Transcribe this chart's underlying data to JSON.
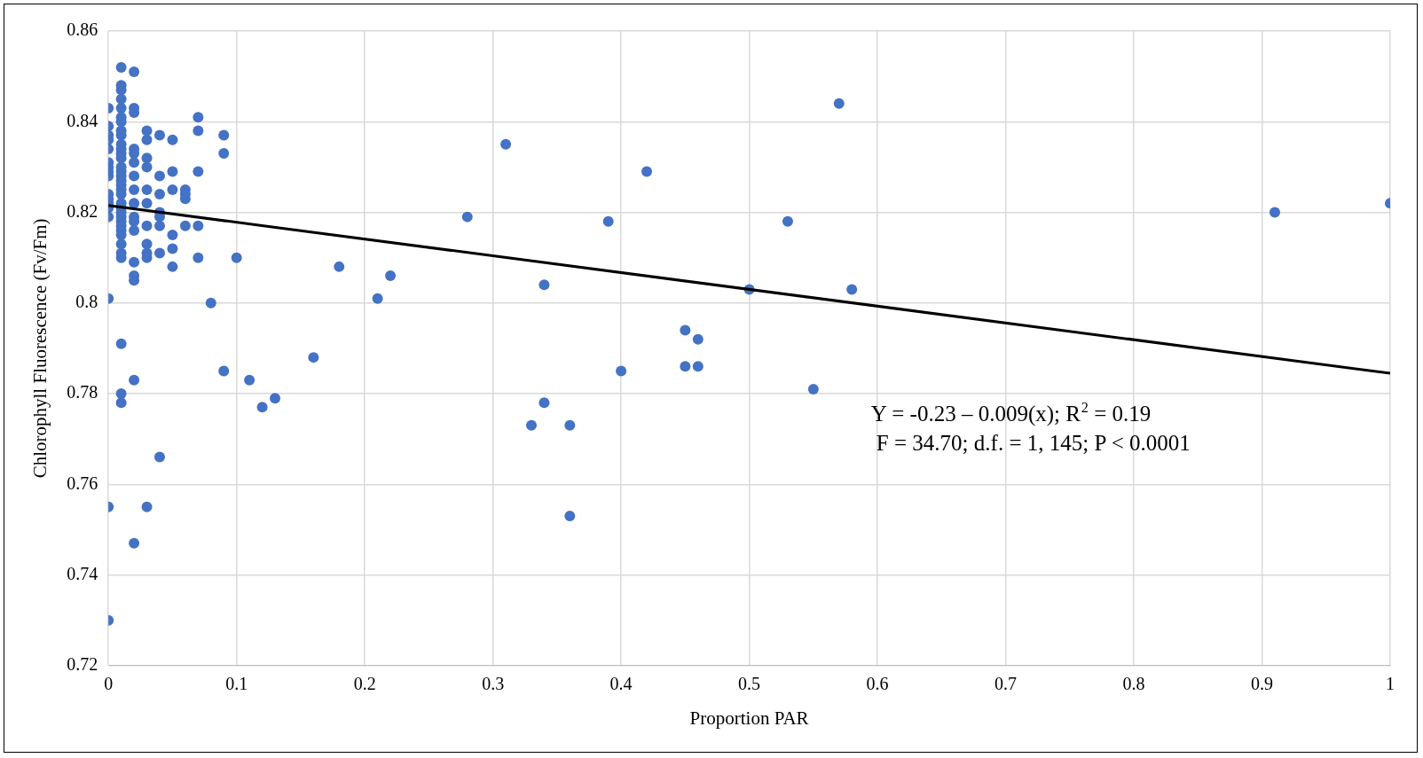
{
  "chart_data": {
    "type": "scatter",
    "xlabel": "Proportion PAR",
    "ylabel": "Chlorophyll Fluorescence (Fv/Fm)",
    "xlim": [
      0,
      1
    ],
    "xticks": [
      0,
      0.1,
      0.2,
      0.3,
      0.4,
      0.5,
      0.6,
      0.7,
      0.8,
      0.9,
      1
    ],
    "ylim": [
      0.72,
      0.86
    ],
    "yticks": [
      0.72,
      0.74,
      0.76,
      0.78,
      0.8,
      0.82,
      0.84,
      0.86
    ],
    "grid": true,
    "legend": false,
    "marker": "circle",
    "annotations": [
      "Y = -0.23 – 0.009(x); R$^{2}$ = 0.19",
      "F = 34.70; d.f. = 1, 145; P < 0.0001"
    ],
    "series": [
      {
        "color": "#4472c4",
        "x": [
          0,
          0,
          0,
          0,
          0,
          0,
          0,
          0,
          0,
          0,
          0,
          0,
          0,
          0,
          0,
          0,
          0,
          0.01,
          0.01,
          0.01,
          0.01,
          0.01,
          0.01,
          0.01,
          0.01,
          0.01,
          0.01,
          0.01,
          0.01,
          0.01,
          0.01,
          0.01,
          0.01,
          0.01,
          0.01,
          0.01,
          0.01,
          0.01,
          0.01,
          0.01,
          0.01,
          0.01,
          0.01,
          0.01,
          0.01,
          0.01,
          0.01,
          0.01,
          0.01,
          0.01,
          0.01,
          0.02,
          0.02,
          0.02,
          0.02,
          0.02,
          0.02,
          0.02,
          0.02,
          0.02,
          0.02,
          0.02,
          0.02,
          0.02,
          0.02,
          0.02,
          0.02,
          0.02,
          0.03,
          0.03,
          0.03,
          0.03,
          0.03,
          0.03,
          0.03,
          0.03,
          0.03,
          0.03,
          0.03,
          0.04,
          0.04,
          0.04,
          0.04,
          0.04,
          0.04,
          0.04,
          0.04,
          0.05,
          0.05,
          0.05,
          0.05,
          0.05,
          0.05,
          0.06,
          0.06,
          0.06,
          0.06,
          0.07,
          0.07,
          0.07,
          0.07,
          0.07,
          0.08,
          0.09,
          0.09,
          0.09,
          0.1,
          0.11,
          0.12,
          0.13,
          0.16,
          0.18,
          0.21,
          0.22,
          0.28,
          0.31,
          0.33,
          0.34,
          0.34,
          0.36,
          0.36,
          0.39,
          0.4,
          0.42,
          0.45,
          0.45,
          0.46,
          0.46,
          0.5,
          0.53,
          0.55,
          0.57,
          0.58,
          0.91,
          1
        ],
        "values": [
          0.843,
          0.839,
          0.837,
          0.836,
          0.834,
          0.831,
          0.83,
          0.829,
          0.828,
          0.824,
          0.823,
          0.822,
          0.821,
          0.819,
          0.801,
          0.755,
          0.73,
          0.852,
          0.848,
          0.847,
          0.845,
          0.843,
          0.841,
          0.84,
          0.838,
          0.837,
          0.835,
          0.834,
          0.833,
          0.832,
          0.83,
          0.829,
          0.828,
          0.827,
          0.826,
          0.825,
          0.824,
          0.822,
          0.821,
          0.82,
          0.819,
          0.818,
          0.817,
          0.816,
          0.815,
          0.813,
          0.811,
          0.81,
          0.791,
          0.78,
          0.778,
          0.851,
          0.843,
          0.842,
          0.834,
          0.833,
          0.831,
          0.828,
          0.825,
          0.822,
          0.819,
          0.818,
          0.816,
          0.809,
          0.806,
          0.805,
          0.783,
          0.747,
          0.838,
          0.836,
          0.832,
          0.83,
          0.825,
          0.822,
          0.817,
          0.813,
          0.811,
          0.81,
          0.755,
          0.837,
          0.828,
          0.824,
          0.82,
          0.819,
          0.817,
          0.811,
          0.766,
          0.836,
          0.829,
          0.825,
          0.815,
          0.812,
          0.808,
          0.825,
          0.824,
          0.823,
          0.817,
          0.841,
          0.838,
          0.829,
          0.817,
          0.81,
          0.8,
          0.837,
          0.833,
          0.785,
          0.81,
          0.783,
          0.777,
          0.779,
          0.788,
          0.808,
          0.801,
          0.806,
          0.819,
          0.835,
          0.773,
          0.804,
          0.778,
          0.773,
          0.753,
          0.818,
          0.785,
          0.829,
          0.794,
          0.786,
          0.792,
          0.786,
          0.803,
          0.818,
          0.781,
          0.844,
          0.803,
          0.82,
          0.822
        ]
      },
      {
        "type": "line",
        "color": "#000000",
        "marker": "none",
        "x": [
          0,
          1
        ],
        "values": [
          0.8215,
          0.7845
        ]
      }
    ]
  }
}
